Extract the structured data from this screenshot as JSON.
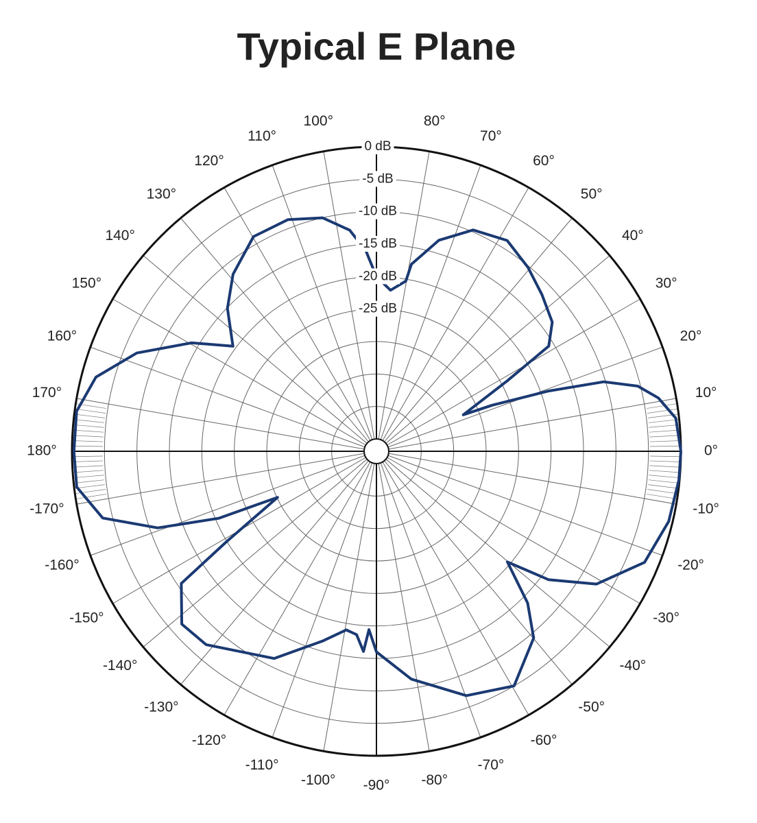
{
  "chart_data": {
    "type": "polar",
    "title": "Typical E Plane",
    "theta": [
      0,
      6.3,
      10.7,
      14,
      17,
      19.3,
      21.7,
      22.8,
      28.3,
      31.4,
      36.3,
      43.4,
      50.5,
      58.2,
      66.4,
      73.5,
      79.4,
      80.2,
      85,
      90,
      93,
      96.9,
      103,
      110.9,
      119.8,
      129,
      136.2,
      143.8,
      149.6,
      157.7,
      165.2,
      172.4,
      180,
      -173.2,
      -166.3,
      -160.7,
      -157,
      -155,
      -148.9,
      -145.9,
      -138.4,
      -131.4,
      -116.3,
      -105.9,
      -99.6,
      -96.2,
      -93.7,
      -92.4,
      -90,
      -81.3,
      -69.8,
      -59.6,
      -49.9,
      -45.1,
      -40.2,
      -36.7,
      -31.1,
      -22.5,
      -13.5,
      -5.4,
      0
    ],
    "r": [
      0,
      -0.5,
      -2.7,
      -5.4,
      -10.3,
      -18.8,
      -27.7,
      -32.4,
      -24,
      -15.8,
      -13.3,
      -11.8,
      -10.2,
      -8.7,
      -9.7,
      -13,
      -17.6,
      -20.3,
      -22,
      -20,
      -16,
      -12.6,
      -10,
      -8.7,
      -8.8,
      -11.8,
      -15.1,
      -19.5,
      -13.9,
      -7,
      -2.2,
      -0.3,
      -0.3,
      -0.4,
      -3.5,
      -11.2,
      -20.5,
      -30.1,
      -19.9,
      -10.6,
      -6.8,
      -7.2,
      -11.3,
      -16.5,
      -19,
      -18.5,
      -16,
      -19.4,
      -16,
      -11.4,
      -6.8,
      -5,
      -9.3,
      -13.9,
      -20.5,
      -13.8,
      -7.3,
      -2.2,
      -0.6,
      -0.1,
      0
    ],
    "color": "#1b3a73",
    "rlim": [
      -45,
      0
    ],
    "rticks": [
      {
        "value": 0,
        "label": "0 dB"
      },
      {
        "value": -5,
        "label": "-5 dB"
      },
      {
        "value": -10,
        "label": "-10 dB"
      },
      {
        "value": -15,
        "label": "-15 dB"
      },
      {
        "value": -20,
        "label": "-20 dB"
      },
      {
        "value": -25,
        "label": "-25 dB"
      }
    ],
    "rgrid": [
      -30,
      -35,
      -40
    ],
    "thetaticks": [
      {
        "value": 0,
        "label": "0°"
      },
      {
        "value": 10,
        "label": "10°"
      },
      {
        "value": 20,
        "label": "20°"
      },
      {
        "value": 30,
        "label": "30°"
      },
      {
        "value": 40,
        "label": "40°"
      },
      {
        "value": 50,
        "label": "50°"
      },
      {
        "value": 60,
        "label": "60°"
      },
      {
        "value": 70,
        "label": "70°"
      },
      {
        "value": 80,
        "label": "80°"
      },
      {
        "value": 100,
        "label": "100°"
      },
      {
        "value": 110,
        "label": "110°"
      },
      {
        "value": 120,
        "label": "120°"
      },
      {
        "value": 130,
        "label": "130°"
      },
      {
        "value": 140,
        "label": "140°"
      },
      {
        "value": 150,
        "label": "150°"
      },
      {
        "value": 160,
        "label": "160°"
      },
      {
        "value": 170,
        "label": "170°"
      },
      {
        "value": 180,
        "label": "180°"
      },
      {
        "value": -170,
        "label": "-170°"
      },
      {
        "value": -160,
        "label": "-160°"
      },
      {
        "value": -150,
        "label": "-150°"
      },
      {
        "value": -140,
        "label": "-140°"
      },
      {
        "value": -130,
        "label": "-130°"
      },
      {
        "value": -120,
        "label": "-120°"
      },
      {
        "value": -110,
        "label": "-110°"
      },
      {
        "value": -100,
        "label": "-100°"
      },
      {
        "value": -90,
        "label": "-90°"
      },
      {
        "value": -80,
        "label": "-80°"
      },
      {
        "value": -70,
        "label": "-70°"
      },
      {
        "value": -60,
        "label": "-60°"
      },
      {
        "value": -50,
        "label": "-50°"
      },
      {
        "value": -40,
        "label": "-40°"
      },
      {
        "value": -30,
        "label": "-30°"
      },
      {
        "value": -20,
        "label": "-20°"
      },
      {
        "value": -10,
        "label": "-10°"
      }
    ]
  }
}
